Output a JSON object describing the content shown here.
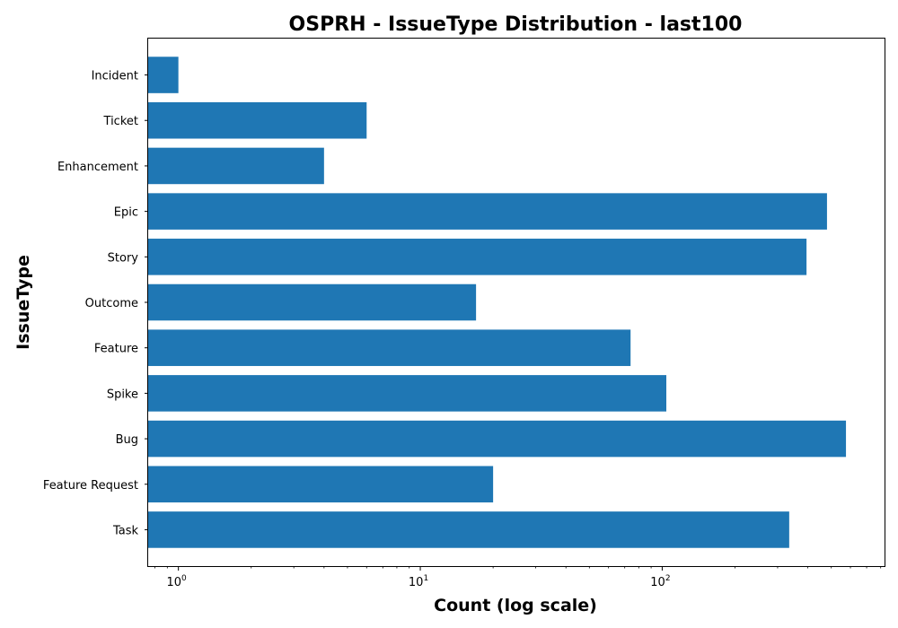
{
  "chart_data": {
    "type": "bar",
    "orientation": "horizontal",
    "title": "OSPRH - IssueType Distribution - last100",
    "xlabel": "Count (log scale)",
    "ylabel": "IssueType",
    "x_scale": "log",
    "xlim": [
      0.75,
      830
    ],
    "x_major_ticks": [
      {
        "value": 1,
        "base": "10",
        "exp": "0"
      },
      {
        "value": 10,
        "base": "10",
        "exp": "1"
      },
      {
        "value": 100,
        "base": "10",
        "exp": "2"
      }
    ],
    "categories": [
      "Incident",
      "Ticket",
      "Enhancement",
      "Epic",
      "Story",
      "Outcome",
      "Feature",
      "Spike",
      "Bug",
      "Feature Request",
      "Task"
    ],
    "values": [
      1,
      6,
      4,
      480,
      395,
      17,
      74,
      104,
      575,
      20,
      335
    ],
    "bar_color": "#1f77b4",
    "grid": false,
    "legend": "none"
  }
}
